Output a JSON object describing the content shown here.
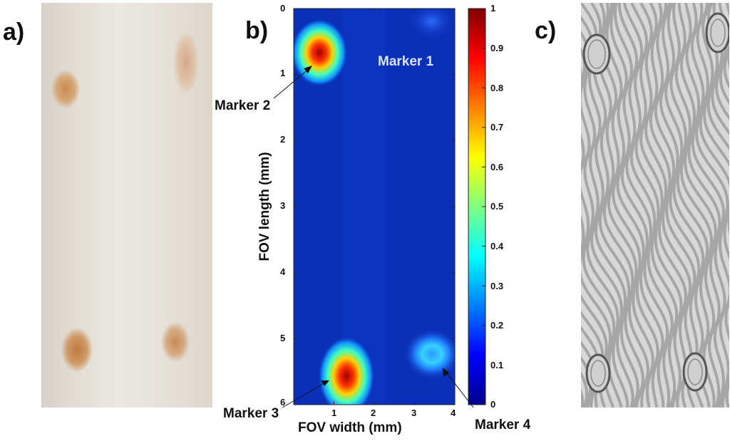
{
  "panel_labels": {
    "a": "a)",
    "b": "b)",
    "c": "c)"
  },
  "heatmap": {
    "xlabel": "FOV width (mm)",
    "ylabel": "FOV length (mm)",
    "xlim": [
      0,
      4
    ],
    "ylim": [
      0,
      6
    ],
    "x_ticks": [
      "1",
      "2",
      "3",
      "4"
    ],
    "y_ticks": [
      "0",
      "1",
      "2",
      "3",
      "4",
      "5",
      "6"
    ],
    "colorbar": {
      "range": [
        0,
        1
      ],
      "ticks": [
        "0",
        "0.1",
        "0.2",
        "0.3",
        "0.4",
        "0.5",
        "0.6",
        "0.7",
        "0.8",
        "0.9",
        "1"
      ]
    },
    "markers": {
      "m1": "Marker 1",
      "m2": "Marker 2",
      "m3": "Marker 3",
      "m4": "Marker 4"
    },
    "colors": {
      "background": "#0b2fb8",
      "colormap": "jet"
    }
  }
}
